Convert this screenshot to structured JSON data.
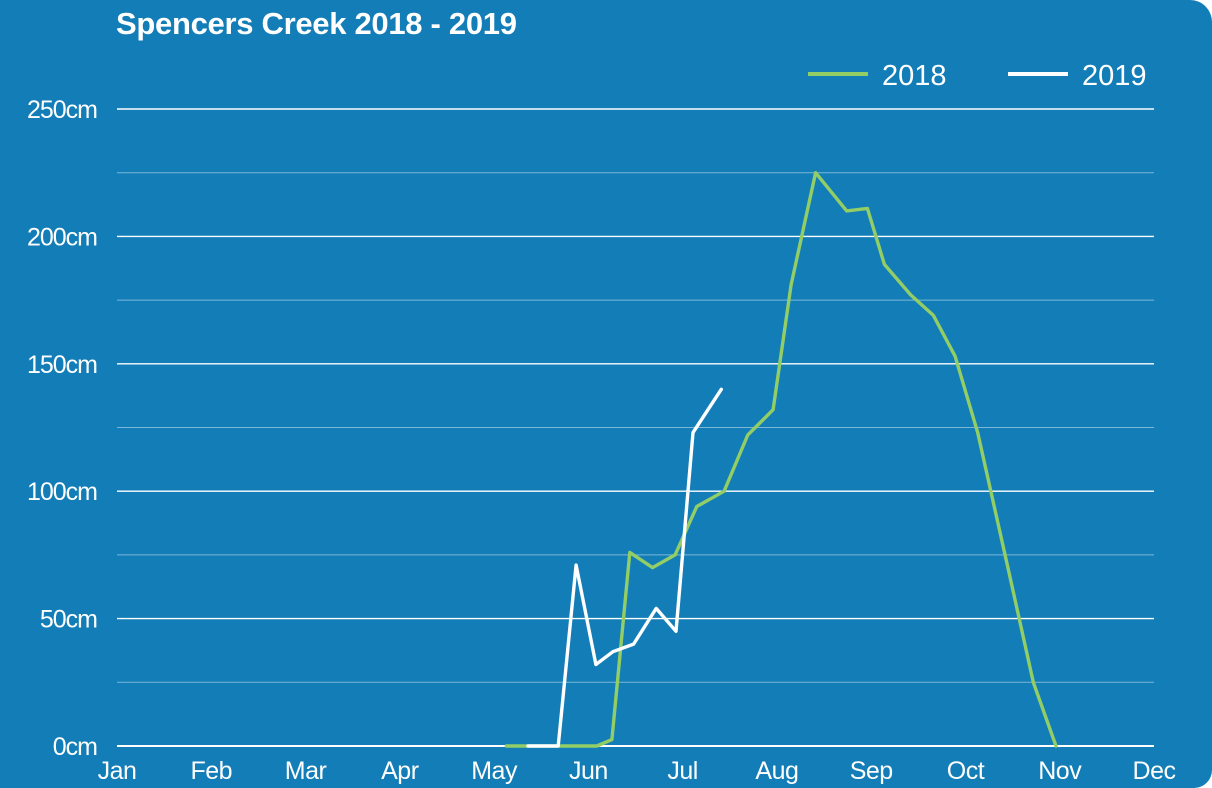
{
  "chart_data": {
    "type": "line",
    "title": "Spencers Creek 2018 - 2019",
    "xlabel": "",
    "ylabel": "",
    "categories": [
      "Jan",
      "Feb",
      "Mar",
      "Apr",
      "May",
      "Jun",
      "Jul",
      "Aug",
      "Sep",
      "Oct",
      "Nov",
      "Dec"
    ],
    "x_range_months": [
      0,
      11
    ],
    "ylim": [
      0,
      250
    ],
    "y_ticks": [
      0,
      50,
      100,
      150,
      200,
      250
    ],
    "y_tick_labels": [
      "0cm",
      "50cm",
      "100cm",
      "150cm",
      "200cm",
      "250cm"
    ],
    "y_minor_gridlines": [
      25,
      75,
      125,
      175,
      225
    ],
    "grid": true,
    "legend_position": "top-right",
    "series": [
      {
        "name": "2018",
        "color": "#92CD66",
        "points": [
          [
            4.13,
            0
          ],
          [
            4.62,
            0
          ],
          [
            4.87,
            0
          ],
          [
            5.09,
            0
          ],
          [
            5.25,
            2.5
          ],
          [
            5.44,
            76
          ],
          [
            5.68,
            70
          ],
          [
            5.92,
            75
          ],
          [
            6.15,
            94
          ],
          [
            6.44,
            100
          ],
          [
            6.69,
            122
          ],
          [
            6.96,
            132
          ],
          [
            7.15,
            181
          ],
          [
            7.41,
            225
          ],
          [
            7.74,
            210
          ],
          [
            7.96,
            211
          ],
          [
            8.14,
            189
          ],
          [
            8.42,
            177
          ],
          [
            8.66,
            169
          ],
          [
            8.89,
            153
          ],
          [
            9.13,
            123
          ],
          [
            9.45,
            70
          ],
          [
            9.72,
            25
          ],
          [
            9.96,
            0
          ]
        ]
      },
      {
        "name": "2019",
        "color": "#FFFFFF",
        "points": [
          [
            4.36,
            0
          ],
          [
            4.68,
            0
          ],
          [
            4.87,
            71
          ],
          [
            5.08,
            32
          ],
          [
            5.26,
            37
          ],
          [
            5.48,
            40
          ],
          [
            5.72,
            54
          ],
          [
            5.93,
            45
          ],
          [
            6.11,
            123
          ],
          [
            6.41,
            140
          ]
        ]
      }
    ]
  }
}
